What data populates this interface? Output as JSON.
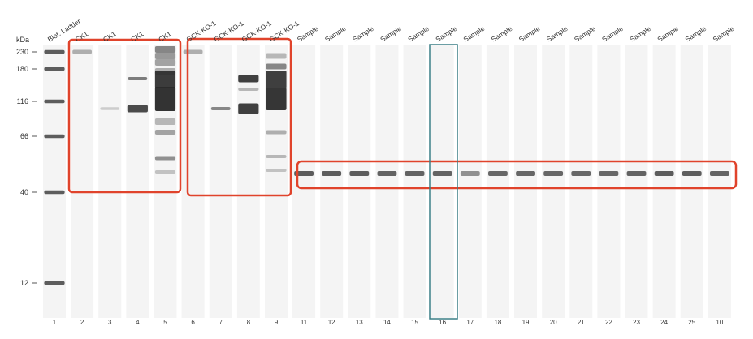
{
  "gel": {
    "unit_label": "kDa",
    "markers": [
      {
        "label": "230"
      },
      {
        "label": "180"
      },
      {
        "label": "116"
      },
      {
        "label": "66"
      },
      {
        "label": "40"
      },
      {
        "label": "12"
      }
    ],
    "lanes": [
      {
        "number": "1",
        "header": "Biot. Ladder"
      },
      {
        "number": "2",
        "header": "CK1"
      },
      {
        "number": "3",
        "header": "CK1"
      },
      {
        "number": "4",
        "header": "CK1"
      },
      {
        "number": "5",
        "header": "CK1"
      },
      {
        "number": "6",
        "header": "GCK-KO-1"
      },
      {
        "number": "7",
        "header": "GCK-KO-1"
      },
      {
        "number": "8",
        "header": "GCK-KO-1"
      },
      {
        "number": "9",
        "header": "GCK-KO-1"
      },
      {
        "number": "11",
        "header": "Sample"
      },
      {
        "number": "12",
        "header": "Sample"
      },
      {
        "number": "13",
        "header": "Sample"
      },
      {
        "number": "14",
        "header": "Sample"
      },
      {
        "number": "15",
        "header": "Sample"
      },
      {
        "number": "16",
        "header": "Sample"
      },
      {
        "number": "17",
        "header": "Sample"
      },
      {
        "number": "18",
        "header": "Sample"
      },
      {
        "number": "19",
        "header": "Sample"
      },
      {
        "number": "20",
        "header": "Sample"
      },
      {
        "number": "21",
        "header": "Sample"
      },
      {
        "number": "22",
        "header": "Sample"
      },
      {
        "number": "23",
        "header": "Sample"
      },
      {
        "number": "24",
        "header": "Sample"
      },
      {
        "number": "25",
        "header": "Sample"
      },
      {
        "number": "10",
        "header": "Sample"
      }
    ],
    "colors": {
      "highlight_red": "#e0432b",
      "highlight_teal": "#3a7f86",
      "band": "#2b2b2b",
      "lane": "#f4f4f4"
    }
  }
}
